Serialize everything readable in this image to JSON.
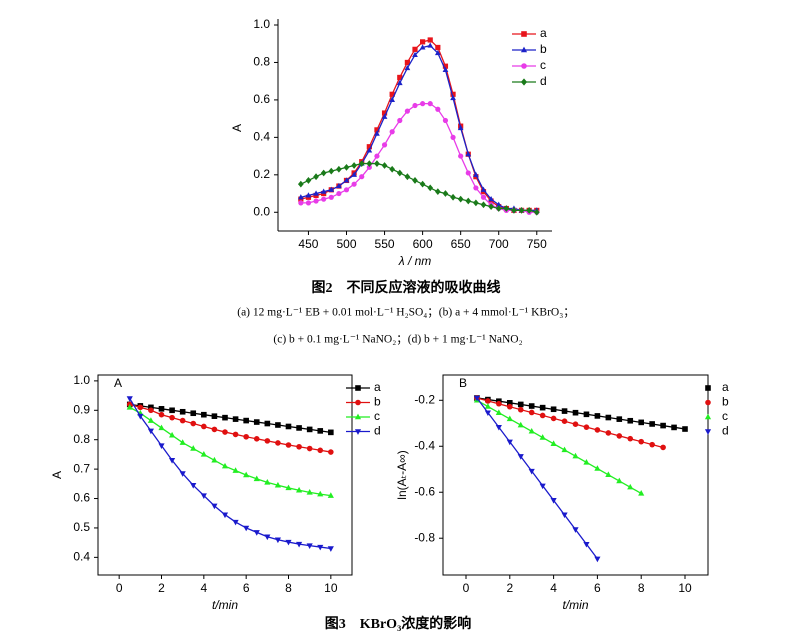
{
  "chart_data": [
    {
      "type": "line",
      "frame": false,
      "connect_points": true,
      "legend": "top-right",
      "x_label": "λ / nm",
      "y_label": "A",
      "xlim": [
        410,
        770
      ],
      "xticks": [
        450,
        500,
        550,
        600,
        650,
        700,
        750
      ],
      "ylim": [
        -0.1,
        1.0
      ],
      "yticks": [
        {
          "value": 0,
          "label": "0.0"
        },
        0.2,
        0.4,
        0.6,
        0.8,
        {
          "value": 1,
          "label": "1.0"
        }
      ],
      "x": [
        440,
        450,
        460,
        470,
        480,
        490,
        500,
        510,
        520,
        530,
        540,
        550,
        560,
        570,
        580,
        590,
        600,
        610,
        620,
        630,
        640,
        650,
        660,
        670,
        680,
        690,
        700,
        710,
        720,
        730,
        740,
        750
      ],
      "series": [
        {
          "name": "a",
          "color": "#e8141b",
          "marker": "square",
          "values": [
            0.07,
            0.08,
            0.09,
            0.1,
            0.12,
            0.14,
            0.17,
            0.21,
            0.27,
            0.35,
            0.44,
            0.53,
            0.63,
            0.72,
            0.8,
            0.87,
            0.91,
            0.92,
            0.88,
            0.78,
            0.63,
            0.46,
            0.31,
            0.19,
            0.11,
            0.06,
            0.03,
            0.02,
            0.01,
            0.01,
            0.01,
            0.01
          ]
        },
        {
          "name": "b",
          "color": "#1c22c8",
          "marker": "triangle-up",
          "values": [
            0.08,
            0.09,
            0.1,
            0.11,
            0.12,
            0.14,
            0.17,
            0.2,
            0.26,
            0.33,
            0.42,
            0.51,
            0.6,
            0.69,
            0.77,
            0.84,
            0.88,
            0.89,
            0.85,
            0.76,
            0.61,
            0.45,
            0.31,
            0.2,
            0.12,
            0.07,
            0.04,
            0.02,
            0.02,
            0.01,
            0.01,
            0.01
          ]
        },
        {
          "name": "c",
          "color": "#e83ce8",
          "marker": "circle",
          "values": [
            0.05,
            0.05,
            0.06,
            0.07,
            0.08,
            0.1,
            0.12,
            0.15,
            0.19,
            0.24,
            0.3,
            0.36,
            0.43,
            0.49,
            0.54,
            0.57,
            0.58,
            0.58,
            0.55,
            0.49,
            0.4,
            0.3,
            0.21,
            0.13,
            0.08,
            0.04,
            0.02,
            0.01,
            0.01,
            0.01,
            0.0,
            0.0
          ]
        },
        {
          "name": "d",
          "color": "#1a7a1a",
          "marker": "diamond",
          "values": [
            0.15,
            0.17,
            0.19,
            0.21,
            0.22,
            0.23,
            0.24,
            0.25,
            0.26,
            0.26,
            0.26,
            0.25,
            0.23,
            0.21,
            0.19,
            0.17,
            0.15,
            0.13,
            0.11,
            0.1,
            0.08,
            0.07,
            0.06,
            0.05,
            0.04,
            0.03,
            0.02,
            0.02,
            0.01,
            0.01,
            0.01,
            0.0
          ]
        }
      ]
    },
    {
      "type": "line",
      "frame": true,
      "connect_points": true,
      "legend": "top-right",
      "panel_label": "A",
      "x_label": "t/min",
      "y_label": "A",
      "xlim": [
        -1,
        11
      ],
      "xticks": [
        0,
        2,
        4,
        6,
        8,
        10
      ],
      "ylim": [
        0.34,
        1.02
      ],
      "yticks": [
        0.4,
        0.5,
        0.6,
        0.7,
        0.8,
        0.9,
        {
          "value": 1,
          "label": "1.0"
        }
      ],
      "x": [
        0.5,
        1,
        1.5,
        2,
        2.5,
        3,
        3.5,
        4,
        4.5,
        5,
        5.5,
        6,
        6.5,
        7,
        7.5,
        8,
        8.5,
        9,
        9.5,
        10
      ],
      "series": [
        {
          "name": "a",
          "color": "#000000",
          "marker": "square",
          "values": [
            0.92,
            0.915,
            0.91,
            0.905,
            0.9,
            0.895,
            0.89,
            0.885,
            0.88,
            0.875,
            0.87,
            0.865,
            0.86,
            0.855,
            0.85,
            0.845,
            0.84,
            0.835,
            0.83,
            0.825
          ]
        },
        {
          "name": "b",
          "color": "#e01010",
          "marker": "circle",
          "values": [
            0.92,
            0.91,
            0.9,
            0.885,
            0.875,
            0.865,
            0.855,
            0.845,
            0.835,
            0.826,
            0.818,
            0.81,
            0.803,
            0.796,
            0.789,
            0.782,
            0.776,
            0.77,
            0.764,
            0.758
          ]
        },
        {
          "name": "c",
          "color": "#22ee22",
          "marker": "triangle-up",
          "values": [
            0.91,
            0.89,
            0.865,
            0.84,
            0.815,
            0.79,
            0.77,
            0.75,
            0.73,
            0.71,
            0.695,
            0.68,
            0.667,
            0.655,
            0.645,
            0.636,
            0.628,
            0.621,
            0.615,
            0.61
          ]
        },
        {
          "name": "d",
          "color": "#1a1acc",
          "marker": "triangle-down",
          "values": [
            0.94,
            0.88,
            0.83,
            0.78,
            0.73,
            0.685,
            0.645,
            0.61,
            0.575,
            0.545,
            0.52,
            0.5,
            0.485,
            0.47,
            0.46,
            0.452,
            0.445,
            0.44,
            0.435,
            0.43
          ]
        }
      ]
    },
    {
      "type": "scatter",
      "frame": true,
      "fit_lines": true,
      "legend": "top-right",
      "panel_label": "B",
      "x_label": "t/min",
      "y_label": "ln(Aₜ-A∞)",
      "xlim": [
        -1.05,
        11.05
      ],
      "xticks": [
        0,
        2,
        4,
        6,
        8,
        10
      ],
      "ylim": [
        -0.96,
        -0.09
      ],
      "yticks": [
        -0.2,
        -0.4,
        -0.6,
        -0.8
      ],
      "series": [
        {
          "name": "a",
          "color": "#000000",
          "marker": "square",
          "x": [
            0.5,
            1,
            1.5,
            2,
            2.5,
            3,
            3.5,
            4,
            4.5,
            5,
            5.5,
            6,
            6.5,
            7,
            7.5,
            8,
            8.5,
            9,
            9.5,
            10
          ],
          "values": [
            -0.19,
            -0.197,
            -0.204,
            -0.211,
            -0.218,
            -0.225,
            -0.232,
            -0.239,
            -0.247,
            -0.254,
            -0.261,
            -0.268,
            -0.275,
            -0.282,
            -0.289,
            -0.296,
            -0.303,
            -0.31,
            -0.318,
            -0.325
          ]
        },
        {
          "name": "b",
          "color": "#e01010",
          "marker": "circle",
          "x": [
            0.5,
            1,
            1.5,
            2,
            2.5,
            3,
            3.5,
            4,
            4.5,
            5,
            5.5,
            6,
            6.5,
            7,
            7.5,
            8,
            8.5,
            9
          ],
          "values": [
            -0.19,
            -0.203,
            -0.215,
            -0.228,
            -0.241,
            -0.253,
            -0.266,
            -0.279,
            -0.291,
            -0.304,
            -0.317,
            -0.329,
            -0.342,
            -0.355,
            -0.367,
            -0.38,
            -0.393,
            -0.405
          ]
        },
        {
          "name": "c",
          "color": "#22ee22",
          "marker": "triangle-up",
          "x": [
            0.5,
            1,
            1.5,
            2,
            2.5,
            3,
            3.5,
            4,
            4.5,
            5,
            5.5,
            6,
            6.5,
            7,
            7.5,
            8
          ],
          "values": [
            -0.2,
            -0.227,
            -0.254,
            -0.281,
            -0.308,
            -0.335,
            -0.362,
            -0.389,
            -0.416,
            -0.443,
            -0.47,
            -0.497,
            -0.524,
            -0.551,
            -0.578,
            -0.605
          ]
        },
        {
          "name": "d",
          "color": "#1a1acc",
          "marker": "triangle-down",
          "x": [
            0.5,
            1,
            1.5,
            2,
            2.5,
            3,
            3.5,
            4,
            4.5,
            5,
            5.5,
            6
          ],
          "values": [
            -0.19,
            -0.254,
            -0.317,
            -0.381,
            -0.444,
            -0.508,
            -0.572,
            -0.635,
            -0.698,
            -0.762,
            -0.826,
            -0.89
          ]
        }
      ]
    }
  ],
  "captions": {
    "figure2_title": "图2　不同反应溶液的吸收曲线",
    "figure2_note_1": "(a) 12 mg·L⁻¹ EB + 0.01 mol·L⁻¹ H₂SO₄；(b) a + 4 mmol·L⁻¹ KBrO₃；",
    "figure2_note_2": "(c) b + 0.1 mg·L⁻¹ NaNO₂；(d) b + 1 mg·L⁻¹ NaNO₂",
    "figure3_title": "图3　KBrO₃浓度的影响"
  }
}
